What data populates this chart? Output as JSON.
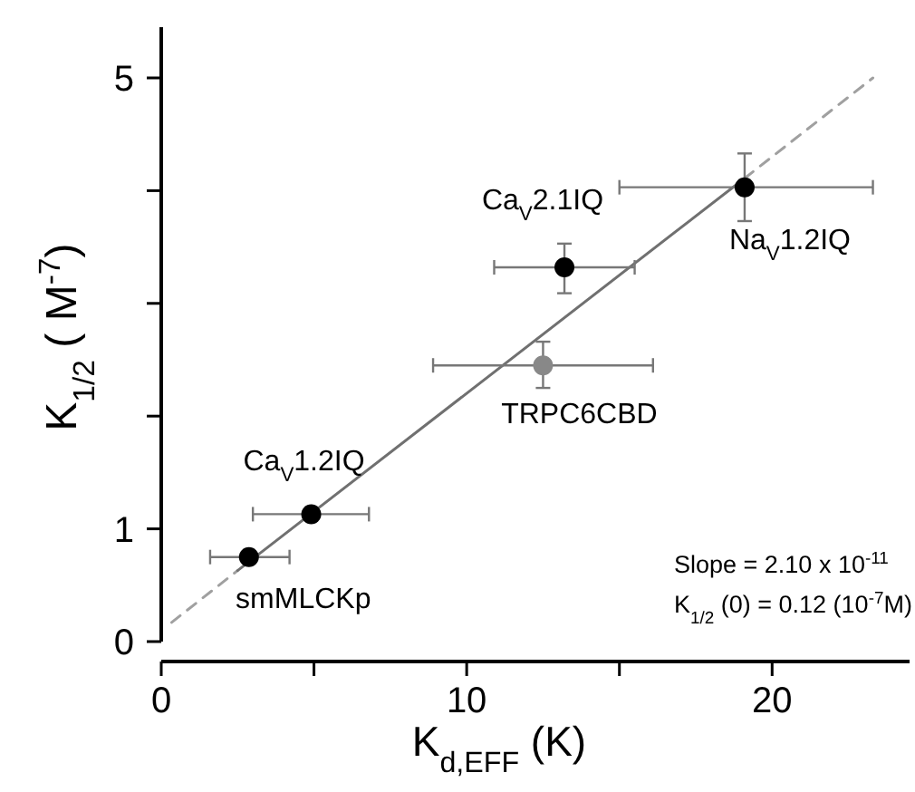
{
  "chart_data": {
    "type": "scatter",
    "xlabel": "K$_{d,EFF}$ (K)",
    "ylabel": "K$_{1/2}$ ( M$^{-7}$)",
    "xlim": [
      0,
      24.5
    ],
    "xticks": [
      0,
      {
        "value": 5,
        "label": null
      },
      10,
      {
        "value": 15,
        "label": null
      },
      20
    ],
    "ylim": [
      0,
      5.45
    ],
    "yticks": [
      0,
      1,
      {
        "value": 2,
        "label": null
      },
      {
        "value": 3,
        "label": null
      },
      {
        "value": 4,
        "label": null
      },
      5
    ],
    "grid": false,
    "marker": "circle",
    "series": [
      {
        "type": "line",
        "marker": "none",
        "line_style": "dashed",
        "color": "#a0a0a0",
        "x": [
          0.34,
          2.5,
          10,
          19.1,
          23.3
        ],
        "values": [
          0.17,
          0.63,
          null,
          4.11,
          5.0
        ]
      },
      {
        "type": "line",
        "marker": "none",
        "line_style": "solid",
        "color": "#707070",
        "x": [
          2.5,
          19.1
        ],
        "values": [
          0.63,
          4.11
        ]
      },
      {
        "x": [
          2.87,
          4.91,
          12.5,
          13.2,
          19.1
        ],
        "values": [
          0.75,
          1.13,
          2.45,
          3.32,
          4.03
        ],
        "colors": [
          "#000000",
          "#000000",
          "#888888",
          "#000000",
          "#000000"
        ],
        "xerrors": [
          [
            1.6,
            4.2
          ],
          [
            3.0,
            6.8
          ],
          [
            8.9,
            16.1
          ],
          [
            10.9,
            15.5
          ],
          [
            15.0,
            23.3
          ]
        ],
        "errors": [
          null,
          null,
          [
            2.25,
            2.66
          ],
          [
            3.09,
            3.53
          ],
          [
            3.73,
            4.33
          ]
        ]
      }
    ],
    "annotations": [
      {
        "text": "smMLCKp",
        "x": 2.87,
        "y": 0.75
      },
      {
        "text": "Ca$_{V}$1.2IQ",
        "x": 4.91,
        "y": 1.13
      },
      {
        "text": "TRPC6CBD",
        "x": 12.5,
        "y": 2.45
      },
      {
        "text": "Ca$_{V}$2.1IQ",
        "x": 13.2,
        "y": 3.32
      },
      {
        "text": "Na$_{V}$1.2IQ",
        "x": 19.1,
        "y": 4.03
      },
      "Slope  = 2.10 x 10$^{-11}$",
      "K$_{1/2}$ (0) = 0.12 (10$^{-7}$M)"
    ]
  }
}
